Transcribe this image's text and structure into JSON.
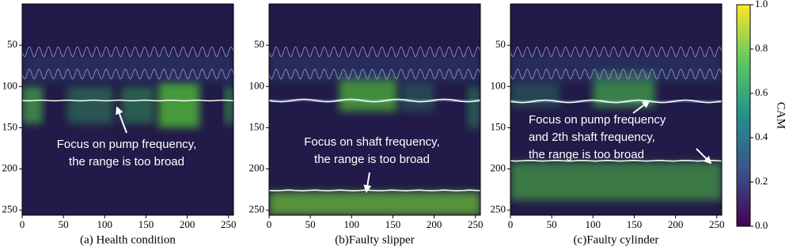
{
  "chart_data": [
    {
      "type": "heatmap",
      "caption": "(a) Health condition",
      "xlim": [
        0,
        256
      ],
      "ylim": [
        256,
        0
      ],
      "xticks": [
        0,
        50,
        100,
        150,
        200,
        250
      ],
      "yticks": [
        50,
        100,
        150,
        200,
        250
      ],
      "annotation": [
        "Focus on pump frequency,",
        "the range is too broad"
      ]
    },
    {
      "type": "heatmap",
      "caption": "(b)Faulty slipper",
      "xlim": [
        0,
        256
      ],
      "ylim": [
        256,
        0
      ],
      "xticks": [
        0,
        50,
        100,
        150,
        200,
        250
      ],
      "yticks": [
        50,
        100,
        150,
        200,
        250
      ],
      "annotation": [
        "Focus on shaft frequency,",
        "the range is too broad"
      ]
    },
    {
      "type": "heatmap",
      "caption": "(c)Faulty cylinder",
      "xlim": [
        0,
        256
      ],
      "ylim": [
        256,
        0
      ],
      "xticks": [
        0,
        50,
        100,
        150,
        200,
        250
      ],
      "yticks": [
        50,
        100,
        150,
        200,
        250
      ],
      "annotation": [
        "Focus on pump frequency",
        "and 2th shaft frequency,",
        "the range is too broad"
      ]
    },
    {
      "type": "colorbar",
      "label": "CAM",
      "lim": [
        0,
        1
      ],
      "ticks": [
        {
          "value": 0,
          "label": "0.0"
        },
        0.2,
        0.4,
        0.6,
        0.8,
        {
          "value": 1,
          "label": "1.0"
        }
      ],
      "colors": [
        "#440154",
        "#3b528b",
        "#21918c",
        "#5ec962",
        "#fde725"
      ]
    }
  ]
}
